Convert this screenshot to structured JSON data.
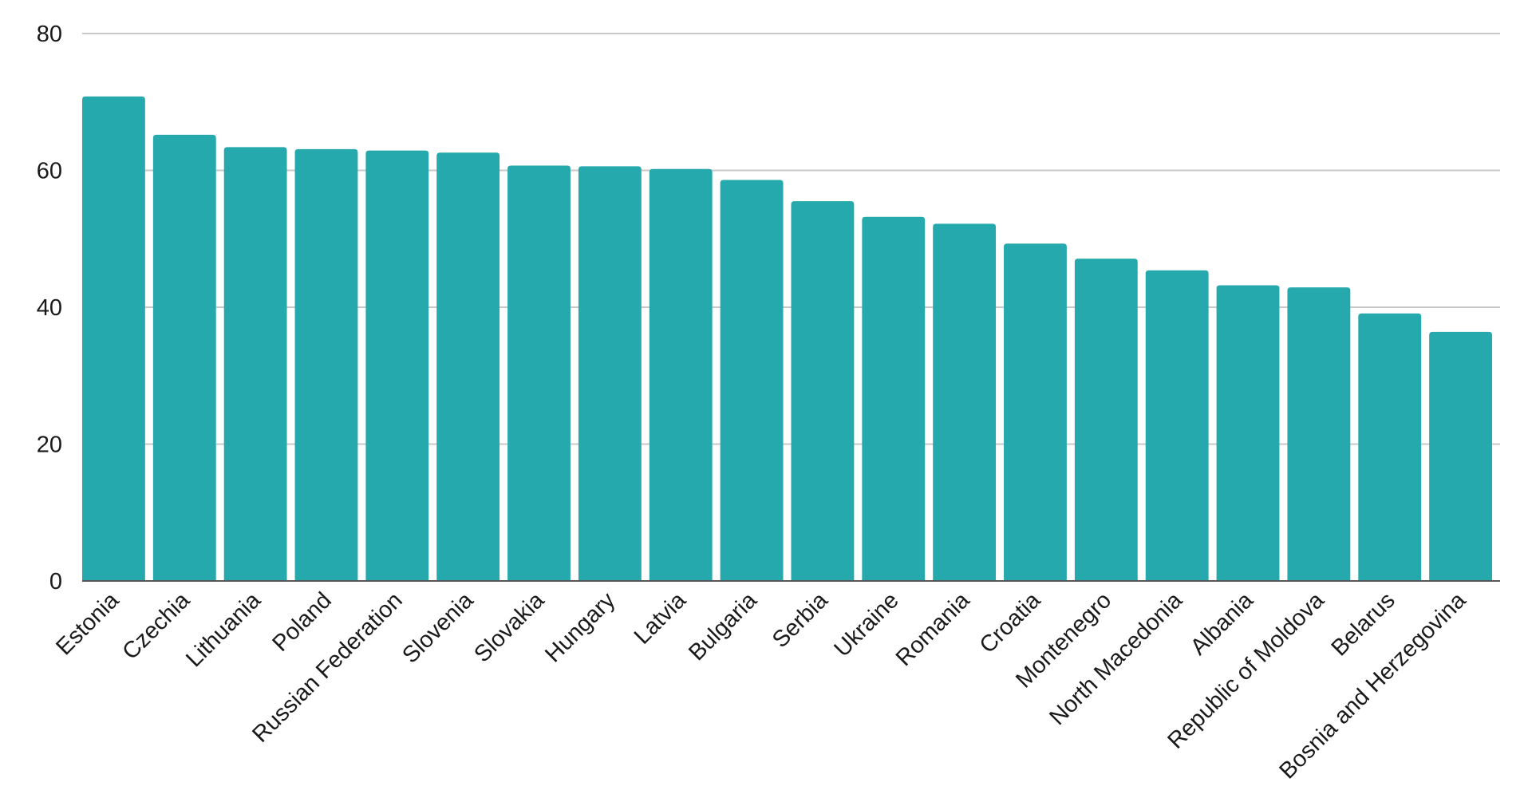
{
  "chart_data": {
    "type": "bar",
    "title": "",
    "xlabel": "",
    "ylabel": "",
    "ylim": [
      0,
      80
    ],
    "yticks": [
      0,
      20,
      40,
      60,
      80
    ],
    "grid": true,
    "legend": "none",
    "bar_color": "#26a9ad",
    "categories": [
      "Estonia",
      "Czechia",
      "Lithuania",
      "Poland",
      "Russian Federation",
      "Slovenia",
      "Slovakia",
      "Hungary",
      "Latvia",
      "Bulgaria",
      "Serbia",
      "Ukraine",
      "Romania",
      "Croatia",
      "Montenegro",
      "North Macedonia",
      "Albania",
      "Republic of Moldova",
      "Belarus",
      "Bosnia and Herzegovina"
    ],
    "values": [
      70.8,
      65.2,
      63.4,
      63.1,
      62.9,
      62.6,
      60.7,
      60.6,
      60.2,
      58.6,
      55.5,
      53.2,
      52.2,
      49.3,
      47.1,
      45.4,
      43.2,
      42.9,
      39.1,
      36.4
    ]
  }
}
